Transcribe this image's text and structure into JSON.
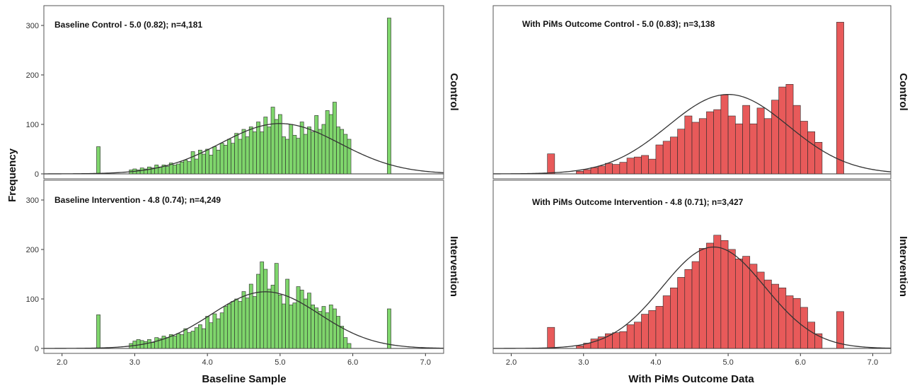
{
  "y_axis_title": "Frequency",
  "row_labels": [
    "Control",
    "Intervention"
  ],
  "columns": [
    {
      "x_axis_title": "Baseline Sample",
      "color": "#7fd66c"
    },
    {
      "x_axis_title": "With PiMs Outcome Data",
      "color": "#e85a5a"
    }
  ],
  "chart_data": [
    {
      "type": "bar",
      "panel": "top-left",
      "annotation": {
        "bold": "Baseline Control - ",
        "regular": " 5.0 (0.82); n=4,181"
      },
      "row_label": "Control",
      "xlim": [
        1.75,
        7.25
      ],
      "ylim": [
        0,
        330
      ],
      "xticks": [
        "2.0",
        "3.0",
        "4.0",
        "5.0",
        "6.0",
        "7.0"
      ],
      "yticks": [
        "0",
        "100",
        "200",
        "300"
      ],
      "normal_curve": {
        "mean": 5.0,
        "sd": 0.82,
        "n": 4181
      },
      "bin_width": 0.05,
      "bins": [
        [
          2.5,
          55
        ],
        [
          2.95,
          8
        ],
        [
          3.0,
          10
        ],
        [
          3.05,
          8
        ],
        [
          3.1,
          12
        ],
        [
          3.15,
          10
        ],
        [
          3.2,
          14
        ],
        [
          3.25,
          12
        ],
        [
          3.3,
          18
        ],
        [
          3.35,
          14
        ],
        [
          3.4,
          18
        ],
        [
          3.45,
          15
        ],
        [
          3.5,
          22
        ],
        [
          3.55,
          18
        ],
        [
          3.6,
          20
        ],
        [
          3.65,
          24
        ],
        [
          3.7,
          28
        ],
        [
          3.75,
          25
        ],
        [
          3.8,
          45
        ],
        [
          3.85,
          30
        ],
        [
          3.9,
          48
        ],
        [
          3.95,
          40
        ],
        [
          4.0,
          50
        ],
        [
          4.05,
          38
        ],
        [
          4.1,
          55
        ],
        [
          4.15,
          48
        ],
        [
          4.2,
          62
        ],
        [
          4.25,
          58
        ],
        [
          4.3,
          70
        ],
        [
          4.35,
          62
        ],
        [
          4.4,
          82
        ],
        [
          4.45,
          70
        ],
        [
          4.5,
          90
        ],
        [
          4.55,
          75
        ],
        [
          4.6,
          95
        ],
        [
          4.65,
          85
        ],
        [
          4.7,
          105
        ],
        [
          4.75,
          85
        ],
        [
          4.8,
          115
        ],
        [
          4.85,
          95
        ],
        [
          4.9,
          135
        ],
        [
          4.95,
          110
        ],
        [
          5.0,
          120
        ],
        [
          5.05,
          75
        ],
        [
          5.1,
          70
        ],
        [
          5.15,
          100
        ],
        [
          5.2,
          78
        ],
        [
          5.25,
          72
        ],
        [
          5.3,
          105
        ],
        [
          5.35,
          80
        ],
        [
          5.4,
          95
        ],
        [
          5.45,
          85
        ],
        [
          5.5,
          118
        ],
        [
          5.55,
          90
        ],
        [
          5.6,
          100
        ],
        [
          5.65,
          128
        ],
        [
          5.7,
          120
        ],
        [
          5.75,
          145
        ],
        [
          5.8,
          95
        ],
        [
          5.85,
          90
        ],
        [
          5.9,
          80
        ],
        [
          5.95,
          70
        ],
        [
          6.5,
          315
        ]
      ]
    },
    {
      "type": "bar",
      "panel": "bottom-left",
      "annotation": {
        "bold": "Baseline Intervention - ",
        "regular": " 4.8 (0.74); n=4,249"
      },
      "row_label": "Intervention",
      "xlim": [
        1.75,
        7.25
      ],
      "ylim": [
        0,
        330
      ],
      "xticks": [
        "2.0",
        "3.0",
        "4.0",
        "5.0",
        "6.0",
        "7.0"
      ],
      "yticks": [
        "0",
        "100",
        "200",
        "300"
      ],
      "normal_curve": {
        "mean": 4.8,
        "sd": 0.74,
        "n": 4249
      },
      "bin_width": 0.05,
      "bins": [
        [
          2.5,
          68
        ],
        [
          2.95,
          10
        ],
        [
          3.0,
          15
        ],
        [
          3.05,
          18
        ],
        [
          3.1,
          16
        ],
        [
          3.15,
          14
        ],
        [
          3.2,
          18
        ],
        [
          3.25,
          12
        ],
        [
          3.3,
          22
        ],
        [
          3.35,
          20
        ],
        [
          3.4,
          25
        ],
        [
          3.45,
          22
        ],
        [
          3.5,
          28
        ],
        [
          3.55,
          25
        ],
        [
          3.6,
          30
        ],
        [
          3.65,
          28
        ],
        [
          3.7,
          40
        ],
        [
          3.75,
          32
        ],
        [
          3.8,
          35
        ],
        [
          3.85,
          42
        ],
        [
          3.9,
          48
        ],
        [
          3.95,
          40
        ],
        [
          4.0,
          65
        ],
        [
          4.05,
          52
        ],
        [
          4.1,
          70
        ],
        [
          4.15,
          60
        ],
        [
          4.2,
          72
        ],
        [
          4.25,
          85
        ],
        [
          4.3,
          90
        ],
        [
          4.35,
          95
        ],
        [
          4.4,
          100
        ],
        [
          4.45,
          95
        ],
        [
          4.5,
          115
        ],
        [
          4.55,
          102
        ],
        [
          4.6,
          130
        ],
        [
          4.65,
          105
        ],
        [
          4.7,
          150
        ],
        [
          4.75,
          175
        ],
        [
          4.8,
          160
        ],
        [
          4.85,
          120
        ],
        [
          4.9,
          128
        ],
        [
          4.95,
          172
        ],
        [
          5.0,
          108
        ],
        [
          5.05,
          90
        ],
        [
          5.1,
          140
        ],
        [
          5.15,
          88
        ],
        [
          5.2,
          92
        ],
        [
          5.25,
          125
        ],
        [
          5.3,
          118
        ],
        [
          5.35,
          100
        ],
        [
          5.4,
          112
        ],
        [
          5.45,
          88
        ],
        [
          5.5,
          82
        ],
        [
          5.55,
          75
        ],
        [
          5.6,
          85
        ],
        [
          5.65,
          72
        ],
        [
          5.7,
          88
        ],
        [
          5.75,
          80
        ],
        [
          5.8,
          65
        ],
        [
          5.85,
          45
        ],
        [
          5.9,
          22
        ],
        [
          5.95,
          10
        ],
        [
          6.5,
          80
        ]
      ]
    },
    {
      "type": "bar",
      "panel": "top-right",
      "annotation": {
        "bold": "With PiMs Outcome  Control - ",
        "regular": " 5.0 (0.83); n=3,138"
      },
      "row_label": "Control",
      "xlim": [
        1.75,
        7.25
      ],
      "ylim": [
        0,
        310
      ],
      "xticks": [
        "2.0",
        "3.0",
        "4.0",
        "5.0",
        "6.0",
        "7.0"
      ],
      "yticks": [],
      "normal_curve": {
        "mean": 5.0,
        "sd": 0.83,
        "n": 3138
      },
      "bin_width": 0.1,
      "bins": [
        [
          2.55,
          38
        ],
        [
          2.95,
          5
        ],
        [
          3.05,
          8
        ],
        [
          3.15,
          12
        ],
        [
          3.25,
          15
        ],
        [
          3.35,
          20
        ],
        [
          3.45,
          18
        ],
        [
          3.55,
          22
        ],
        [
          3.65,
          30
        ],
        [
          3.75,
          32
        ],
        [
          3.85,
          35
        ],
        [
          3.95,
          28
        ],
        [
          4.05,
          55
        ],
        [
          4.15,
          62
        ],
        [
          4.25,
          70
        ],
        [
          4.35,
          85
        ],
        [
          4.45,
          110
        ],
        [
          4.55,
          98
        ],
        [
          4.65,
          105
        ],
        [
          4.75,
          118
        ],
        [
          4.85,
          122
        ],
        [
          4.95,
          150
        ],
        [
          5.05,
          110
        ],
        [
          5.15,
          95
        ],
        [
          5.25,
          130
        ],
        [
          5.35,
          95
        ],
        [
          5.45,
          125
        ],
        [
          5.55,
          105
        ],
        [
          5.65,
          140
        ],
        [
          5.75,
          165
        ],
        [
          5.85,
          170
        ],
        [
          5.95,
          130
        ],
        [
          6.05,
          100
        ],
        [
          6.15,
          80
        ],
        [
          6.25,
          60
        ],
        [
          6.55,
          288
        ]
      ]
    },
    {
      "type": "bar",
      "panel": "bottom-right",
      "annotation": {
        "bold": "With PiMs Outcome  Intervention - ",
        "regular": " 4.8 (0.71); n=3,427"
      },
      "row_label": "Intervention",
      "xlim": [
        1.75,
        7.25
      ],
      "ylim": [
        0,
        310
      ],
      "xticks": [
        "2.0",
        "3.0",
        "4.0",
        "5.0",
        "6.0",
        "7.0"
      ],
      "yticks": [],
      "normal_curve": {
        "mean": 4.8,
        "sd": 0.71,
        "n": 3427
      },
      "bin_width": 0.1,
      "bins": [
        [
          2.55,
          40
        ],
        [
          2.95,
          5
        ],
        [
          3.05,
          10
        ],
        [
          3.15,
          18
        ],
        [
          3.25,
          22
        ],
        [
          3.35,
          28
        ],
        [
          3.45,
          30
        ],
        [
          3.55,
          32
        ],
        [
          3.65,
          45
        ],
        [
          3.75,
          50
        ],
        [
          3.85,
          65
        ],
        [
          3.95,
          72
        ],
        [
          4.05,
          80
        ],
        [
          4.15,
          100
        ],
        [
          4.25,
          115
        ],
        [
          4.35,
          135
        ],
        [
          4.45,
          150
        ],
        [
          4.55,
          165
        ],
        [
          4.65,
          190
        ],
        [
          4.75,
          200
        ],
        [
          4.85,
          215
        ],
        [
          4.95,
          205
        ],
        [
          5.05,
          188
        ],
        [
          5.15,
          170
        ],
        [
          5.25,
          175
        ],
        [
          5.35,
          160
        ],
        [
          5.45,
          145
        ],
        [
          5.55,
          130
        ],
        [
          5.65,
          122
        ],
        [
          5.75,
          115
        ],
        [
          5.85,
          100
        ],
        [
          5.95,
          95
        ],
        [
          6.05,
          78
        ],
        [
          6.15,
          50
        ],
        [
          6.25,
          28
        ],
        [
          6.55,
          70
        ]
      ]
    }
  ]
}
